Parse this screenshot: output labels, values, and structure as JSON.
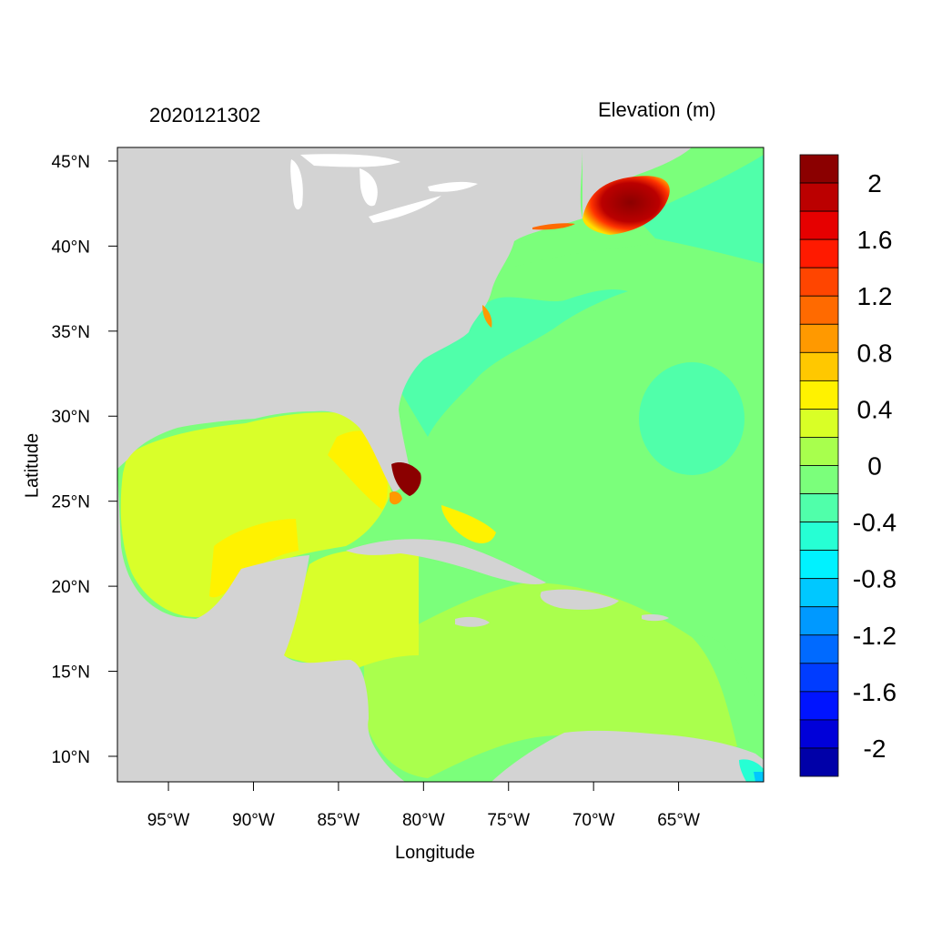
{
  "plot": {
    "left_title": "2020121302",
    "right_title": "Elevation (m)",
    "xlabel": "Longitude",
    "ylabel": "Latitude"
  },
  "axes": {
    "lon_ticks": [
      "95°W",
      "90°W",
      "85°W",
      "80°W",
      "75°W",
      "70°W",
      "65°W"
    ],
    "lat_ticks": [
      "10°N",
      "15°N",
      "20°N",
      "25°N",
      "30°N",
      "35°N",
      "40°N",
      "45°N"
    ],
    "lon_range": [
      -98,
      -60
    ],
    "lat_range": [
      8.5,
      45.8
    ]
  },
  "colorbar": {
    "labels": [
      "2",
      "1.6",
      "1.2",
      "0.8",
      "0.4",
      "0",
      "-0.4",
      "-0.8",
      "-1.2",
      "-1.6",
      "-2"
    ],
    "colors_top_to_bottom": [
      "#8b0000",
      "#bb0000",
      "#e60000",
      "#ff1a00",
      "#ff4500",
      "#ff6a00",
      "#ff9900",
      "#ffc800",
      "#fff200",
      "#d9ff26",
      "#a8ff4d",
      "#7bff7b",
      "#50ffaa",
      "#26ffd4",
      "#00f2ff",
      "#00c8ff",
      "#0099ff",
      "#006aff",
      "#003cff",
      "#0014ff",
      "#0000d9",
      "#0000a8"
    ]
  },
  "colors": {
    "land": "#d3d3d3",
    "lakes": "#ffffff",
    "gulf": "#d9ff2a",
    "atlantic": "#7bff7b",
    "caribbean": "#aaff4d",
    "eddy": "#50ffaa",
    "surge_high": "#8b0000"
  }
}
